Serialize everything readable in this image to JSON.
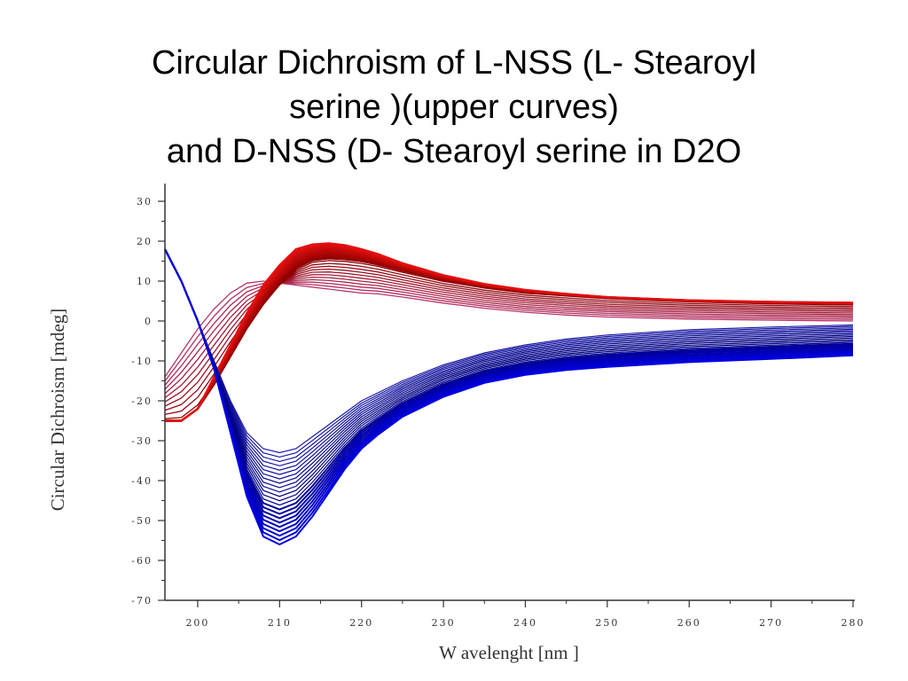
{
  "title_lines": [
    "Circular Dichroism of L-NSS (L- Stearoyl",
    "serine )(upper curves)",
    "and D-NSS (D- Stearoyl serine in D2O"
  ],
  "chart_data": {
    "type": "line",
    "xlabel": "W avelenght [nm ]",
    "ylabel": "Circular Dichroism [mdeg]",
    "xlim": [
      196,
      280
    ],
    "ylim": [
      -70,
      30
    ],
    "x_ticks": [
      200,
      210,
      220,
      230,
      240,
      250,
      260,
      270,
      280
    ],
    "y_ticks": [
      30,
      20,
      10,
      0,
      -10,
      -20,
      -30,
      -40,
      -50,
      -60,
      -70
    ],
    "x_tick_labels": [
      "200",
      "210",
      "220",
      "230",
      "240",
      "250",
      "260",
      "270",
      "280"
    ],
    "y_tick_labels": [
      "30",
      "20",
      "10",
      "0",
      "-10",
      "-20",
      "-30",
      "-40",
      "-50",
      "-60",
      "-70"
    ],
    "grid": false,
    "legend": "none",
    "x": [
      196,
      198,
      200,
      202,
      204,
      206,
      208,
      210,
      212,
      214,
      216,
      218,
      220,
      222,
      225,
      230,
      235,
      240,
      245,
      250,
      260,
      270,
      280
    ],
    "colors": {
      "upper_start": "#b8346a",
      "upper_end": "#e41010",
      "upper_dark": "#8b0000",
      "lower_start": "#1a1aa8",
      "lower_end": "#0000e0",
      "lower_dark": "#000080"
    },
    "upper_series": {
      "description_count": 22,
      "first": [
        -14,
        -8,
        -2,
        3,
        7,
        9.5,
        10,
        9.5,
        9,
        8.5,
        8,
        7.5,
        7,
        6.8,
        6,
        4.5,
        3.2,
        2.2,
        1.5,
        1,
        0.5,
        0.2,
        0
      ],
      "last": [
        -25,
        -25,
        -22,
        -16,
        -9,
        -2,
        4,
        9,
        13,
        15,
        15.5,
        15.3,
        14.8,
        14,
        12.5,
        10.2,
        8.5,
        7.2,
        6.5,
        5.8,
        5,
        4.5,
        4.2
      ],
      "peak_max": [
        -25,
        -25,
        -22,
        -14,
        -6,
        2,
        9,
        14,
        18,
        19.2,
        19.5,
        19,
        18,
        16.8,
        14.5,
        11.5,
        9.3,
        7.8,
        6.8,
        6,
        5.2,
        4.8,
        4.6
      ]
    },
    "lower_series": {
      "description_count": 22,
      "first": [
        18,
        10,
        0,
        -10,
        -20,
        -28,
        -32,
        -33,
        -32,
        -29,
        -26,
        -23,
        -20,
        -18,
        -15,
        -11,
        -8,
        -6,
        -4.5,
        -3.5,
        -2.2,
        -1.5,
        -1
      ],
      "last": [
        18,
        10,
        0,
        -12,
        -28,
        -44,
        -54,
        -56,
        -54,
        -49,
        -43,
        -37,
        -32,
        -28.5,
        -24,
        -19,
        -15.5,
        -13.5,
        -12.3,
        -11.5,
        -10.3,
        -9.5,
        -8.6
      ]
    }
  }
}
